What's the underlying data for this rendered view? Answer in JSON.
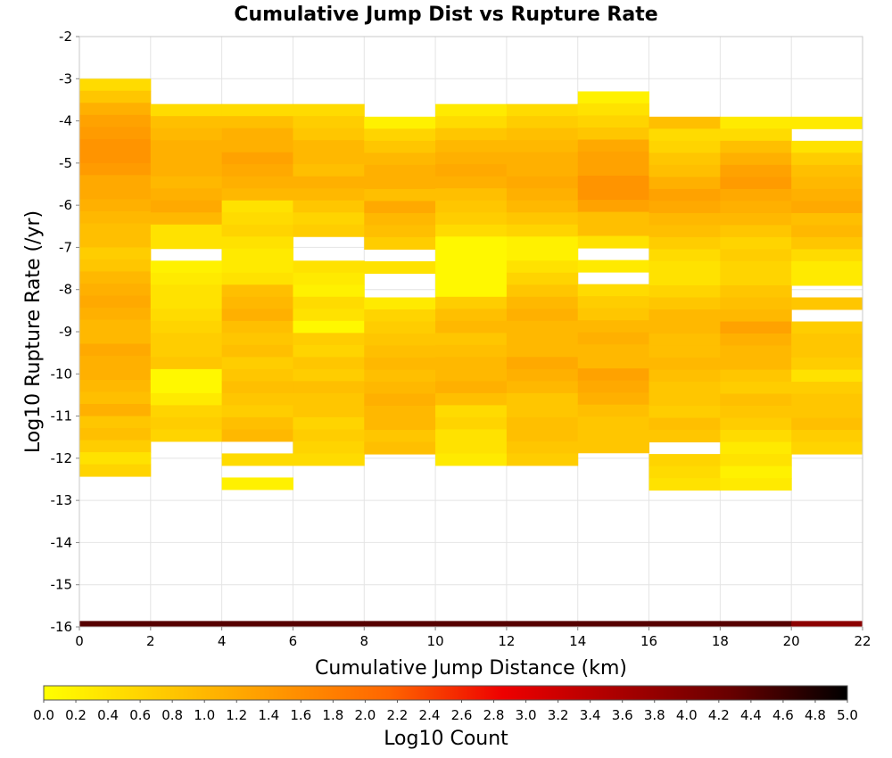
{
  "chart_data": {
    "type": "heatmap",
    "title": "Cumulative Jump Dist vs Rupture Rate",
    "xlabel": "Cumulative Jump Distance (km)",
    "ylabel": "Log10 Rupture Rate (/yr)",
    "xlim": [
      0,
      22
    ],
    "ylim": [
      -16,
      -2
    ],
    "x_ticks": [
      0,
      2,
      4,
      6,
      8,
      10,
      12,
      14,
      16,
      18,
      20,
      22
    ],
    "y_ticks": [
      -2,
      -3,
      -4,
      -5,
      -6,
      -7,
      -8,
      -9,
      -10,
      -11,
      -12,
      -13,
      -14,
      -15,
      -16
    ],
    "x_bin_width_km": 2,
    "y_bin_height_log10": 0.2857,
    "colorbar": {
      "label": "Log10 Count",
      "min": 0.0,
      "max": 5.0,
      "ticks": [
        0.0,
        0.2,
        0.4,
        0.6,
        0.8,
        1.0,
        1.2,
        1.4,
        1.6,
        1.8,
        2.0,
        2.2,
        2.4,
        2.6,
        2.8,
        3.0,
        3.2,
        3.4,
        3.6,
        3.8,
        4.0,
        4.2,
        4.4,
        4.6,
        4.8,
        5.0
      ],
      "colors": [
        "#ffff00",
        "#ffcc00",
        "#ff9900",
        "#ff6600",
        "#ee0000",
        "#aa0000",
        "#660000",
        "#000000"
      ]
    },
    "cells": [
      {
        "x": 0,
        "y_top": -3.0,
        "values": [
          0.5,
          0.8,
          1.1,
          1.3,
          1.4,
          1.5,
          1.5,
          1.4,
          1.2,
          1.2,
          1.1,
          1.0,
          0.9,
          0.9,
          0.7,
          0.8,
          1.0,
          1.1,
          1.2,
          1.1,
          1.0,
          1.0,
          1.2,
          1.1,
          1.1,
          1.0,
          0.9,
          1.1,
          0.8,
          0.9,
          0.7,
          0.4,
          0.6
        ]
      },
      {
        "x": 2,
        "y_top": -3.6,
        "values": [
          0.5,
          0.9,
          1.0,
          1.1,
          1.1,
          1.1,
          1.0,
          1.1,
          1.2,
          1.0,
          0.4,
          0.4,
          null,
          0.2,
          0.3,
          0.4,
          0.4,
          0.5,
          0.6,
          0.7,
          0.7,
          0.8,
          0.1,
          0.1,
          0.3,
          0.6,
          0.7,
          0.6
        ]
      },
      {
        "x": 4,
        "y_top": -3.6,
        "values": [
          0.5,
          0.9,
          1.1,
          1.1,
          1.3,
          1.2,
          1.1,
          1.0,
          0.4,
          0.5,
          0.6,
          0.4,
          0.3,
          0.3,
          0.4,
          0.9,
          1.0,
          1.1,
          0.9,
          0.8,
          0.9,
          0.7,
          0.8,
          0.9,
          0.8,
          0.7,
          0.9,
          1.0,
          null,
          0.5,
          null,
          0.2
        ]
      },
      {
        "x": 6,
        "y_top": -3.6,
        "values": [
          0.5,
          0.7,
          0.8,
          1.0,
          1.0,
          0.9,
          1.1,
          1.0,
          0.8,
          0.6,
          0.7,
          null,
          null,
          0.4,
          0.3,
          0.2,
          0.5,
          0.4,
          0.1,
          0.7,
          0.6,
          0.8,
          0.7,
          0.9,
          0.8,
          0.8,
          0.6,
          0.7,
          0.6,
          0.5
        ]
      },
      {
        "x": 8,
        "y_top": -3.9,
        "values": [
          0.2,
          0.6,
          0.8,
          1.0,
          1.1,
          1.1,
          0.9,
          1.2,
          1.0,
          0.9,
          0.7,
          null,
          0.4,
          null,
          null,
          0.3,
          0.6,
          0.7,
          0.8,
          0.9,
          1.0,
          0.9,
          1.0,
          1.1,
          1.0,
          1.0,
          0.8,
          0.9
        ]
      },
      {
        "x": 10,
        "y_top": -3.6,
        "values": [
          0.3,
          0.5,
          0.8,
          1.0,
          1.1,
          1.2,
          1.1,
          0.9,
          0.8,
          0.7,
          0.5,
          0.1,
          0.1,
          0.1,
          0.1,
          0.1,
          0.7,
          0.9,
          1.0,
          0.8,
          0.9,
          1.0,
          1.0,
          1.1,
          0.9,
          0.5,
          0.6,
          0.4,
          0.4,
          0.3
        ]
      },
      {
        "x": 12,
        "y_top": -3.6,
        "values": [
          0.5,
          0.7,
          0.9,
          1.0,
          1.1,
          1.1,
          1.2,
          1.1,
          1.0,
          0.8,
          0.6,
          0.2,
          0.2,
          0.4,
          0.6,
          0.8,
          1.0,
          1.1,
          1.0,
          1.0,
          1.0,
          1.2,
          1.1,
          1.0,
          0.8,
          0.8,
          0.9,
          0.9,
          0.8,
          0.7
        ]
      },
      {
        "x": 14,
        "y_top": -3.3,
        "values": [
          0.2,
          0.4,
          0.6,
          0.8,
          1.2,
          1.3,
          1.3,
          1.5,
          1.5,
          1.3,
          0.9,
          0.9,
          0.4,
          null,
          0.3,
          null,
          0.5,
          0.7,
          0.8,
          1.0,
          1.1,
          1.0,
          1.0,
          1.3,
          1.2,
          1.1,
          0.9,
          0.8,
          0.8,
          0.8
        ]
      },
      {
        "x": 16,
        "y_top": -3.9,
        "values": [
          0.9,
          0.5,
          0.6,
          0.8,
          0.9,
          1.1,
          1.3,
          1.2,
          1.0,
          0.9,
          0.7,
          0.5,
          0.4,
          0.4,
          0.6,
          0.8,
          1.0,
          1.0,
          0.9,
          0.9,
          1.0,
          0.9,
          0.8,
          0.8,
          0.7,
          0.9,
          0.8,
          null,
          0.6,
          0.5,
          0.4
        ]
      },
      {
        "x": 18,
        "y_top": -3.9,
        "values": [
          0.3,
          0.5,
          0.9,
          1.1,
          1.3,
          1.4,
          1.2,
          1.1,
          1.0,
          0.8,
          0.6,
          0.7,
          0.6,
          0.6,
          0.8,
          0.9,
          1.0,
          1.3,
          1.1,
          1.0,
          1.0,
          0.8,
          0.7,
          0.9,
          0.8,
          0.7,
          0.5,
          0.3,
          0.4,
          0.2,
          0.3
        ]
      },
      {
        "x": 20,
        "y_top": -3.9,
        "values": [
          0.3,
          null,
          0.4,
          0.7,
          0.9,
          1.0,
          1.1,
          1.2,
          0.9,
          1.0,
          0.8,
          0.5,
          0.3,
          0.3,
          null,
          0.8,
          null,
          0.7,
          0.8,
          0.8,
          0.7,
          0.4,
          0.7,
          0.8,
          0.8,
          0.9,
          0.7,
          0.6
        ]
      },
      {
        "row": "bottom",
        "y_top": -15.86,
        "values_by_x": [
          4.4,
          4.4,
          4.4,
          4.4,
          4.4,
          4.4,
          4.4,
          4.4,
          4.4,
          4.4,
          3.9
        ]
      }
    ]
  }
}
